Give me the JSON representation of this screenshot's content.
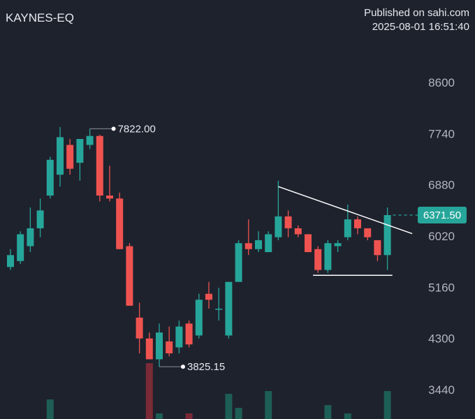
{
  "header": {
    "symbol": "KAYNES-EQ",
    "published": "Published on sahi.com",
    "timestamp": "2025-08-01 16:51:40"
  },
  "colors": {
    "background": "#1e222d",
    "up": "#26a69a",
    "down": "#ef5350",
    "volume_up": "#1d5e56",
    "volume_down": "#7a2a36",
    "annotation": "#ffffff"
  },
  "chart_data": {
    "type": "candlestick",
    "y_axis": {
      "ticks": [
        8600,
        7740,
        6880,
        6020,
        5160,
        4300,
        3440
      ],
      "tick_labels": [
        "8600",
        "7740",
        "6880",
        "6020",
        "5160",
        "4300",
        "3440"
      ],
      "range": [
        3000,
        9400
      ]
    },
    "last_price": 6371.5,
    "last_price_label": "6371.50",
    "callouts": [
      {
        "index": 8,
        "value": 7822.0,
        "label": "7822.00"
      },
      {
        "index": 15,
        "value": 3825.15,
        "label": "3825.15"
      }
    ],
    "candles": [
      {
        "o": 5500,
        "h": 5800,
        "l": 5450,
        "c": 5700
      },
      {
        "o": 5600,
        "h": 6100,
        "l": 5550,
        "c": 6050
      },
      {
        "o": 5850,
        "h": 6500,
        "l": 5750,
        "c": 6150
      },
      {
        "o": 6150,
        "h": 6650,
        "l": 6000,
        "c": 6450
      },
      {
        "o": 6700,
        "h": 7350,
        "l": 6650,
        "c": 7300
      },
      {
        "o": 7050,
        "h": 7850,
        "l": 6850,
        "c": 7680
      },
      {
        "o": 7550,
        "h": 7650,
        "l": 7050,
        "c": 7150
      },
      {
        "o": 7250,
        "h": 7650,
        "l": 6950,
        "c": 7650
      },
      {
        "o": 7550,
        "h": 7822,
        "l": 7480,
        "c": 7700
      },
      {
        "o": 7700,
        "h": 7720,
        "l": 6600,
        "c": 6700
      },
      {
        "o": 6700,
        "h": 7200,
        "l": 6600,
        "c": 6650
      },
      {
        "o": 6650,
        "h": 6750,
        "l": 5800,
        "c": 5800
      },
      {
        "o": 5850,
        "h": 5900,
        "l": 4850,
        "c": 4850
      },
      {
        "o": 4650,
        "h": 4900,
        "l": 4050,
        "c": 4300
      },
      {
        "o": 4300,
        "h": 4400,
        "l": 3950,
        "c": 3950
      },
      {
        "o": 3950,
        "h": 4550,
        "l": 3825.15,
        "c": 4400
      },
      {
        "o": 4250,
        "h": 4500,
        "l": 4000,
        "c": 4050
      },
      {
        "o": 4150,
        "h": 4600,
        "l": 4050,
        "c": 4500
      },
      {
        "o": 4550,
        "h": 4600,
        "l": 4150,
        "c": 4200
      },
      {
        "o": 4350,
        "h": 5050,
        "l": 4300,
        "c": 4950
      },
      {
        "o": 5050,
        "h": 5250,
        "l": 4800,
        "c": 4950
      },
      {
        "o": 4800,
        "h": 5150,
        "l": 4600,
        "c": 4800
      },
      {
        "o": 4350,
        "h": 5250,
        "l": 4300,
        "c": 5250
      },
      {
        "o": 5250,
        "h": 5950,
        "l": 5250,
        "c": 5900
      },
      {
        "o": 5900,
        "h": 6300,
        "l": 5700,
        "c": 5800
      },
      {
        "o": 5800,
        "h": 6100,
        "l": 5750,
        "c": 5950
      },
      {
        "o": 5750,
        "h": 6100,
        "l": 5750,
        "c": 6050
      },
      {
        "o": 6000,
        "h": 6950,
        "l": 5950,
        "c": 6350
      },
      {
        "o": 6350,
        "h": 6450,
        "l": 6000,
        "c": 6150
      },
      {
        "o": 6150,
        "h": 6200,
        "l": 6000,
        "c": 6050
      },
      {
        "o": 6050,
        "h": 6050,
        "l": 5750,
        "c": 5750
      },
      {
        "o": 5800,
        "h": 5850,
        "l": 5400,
        "c": 5450
      },
      {
        "o": 5450,
        "h": 5950,
        "l": 5400,
        "c": 5900
      },
      {
        "o": 5850,
        "h": 5950,
        "l": 5750,
        "c": 5900
      },
      {
        "o": 6000,
        "h": 6550,
        "l": 5950,
        "c": 6300
      },
      {
        "o": 6300,
        "h": 6350,
        "l": 6050,
        "c": 6150
      },
      {
        "o": 6150,
        "h": 6150,
        "l": 5950,
        "c": 6000
      },
      {
        "o": 5950,
        "h": 5950,
        "l": 5600,
        "c": 5700
      },
      {
        "o": 5700,
        "h": 6500,
        "l": 5450,
        "c": 6371.5
      }
    ],
    "volume": [
      0,
      0,
      0,
      0,
      0.35,
      0,
      0,
      0,
      0,
      0,
      0,
      0,
      0,
      0,
      1.0,
      0.1,
      0,
      0,
      0.1,
      0,
      0,
      0,
      0.45,
      0.2,
      0,
      0,
      0.5,
      0,
      0,
      0,
      0,
      0,
      0.25,
      0,
      0.1,
      0,
      0,
      0,
      0.5
    ],
    "annotations": [
      {
        "type": "trendline",
        "from": {
          "index": 27,
          "value": 6850
        },
        "to": {
          "index": 40.5,
          "value": 6060
        }
      },
      {
        "type": "trendline",
        "from": {
          "index": 30.5,
          "value": 5360
        },
        "to": {
          "index": 38.5,
          "value": 5360
        }
      }
    ]
  }
}
